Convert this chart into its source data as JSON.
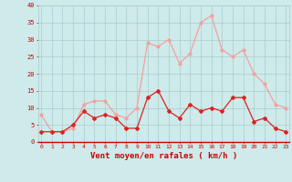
{
  "hours": [
    0,
    1,
    2,
    3,
    4,
    5,
    6,
    7,
    8,
    9,
    10,
    11,
    12,
    13,
    14,
    15,
    16,
    17,
    18,
    19,
    20,
    21,
    22,
    23
  ],
  "wind_avg": [
    3,
    3,
    3,
    5,
    9,
    7,
    8,
    7,
    4,
    4,
    13,
    15,
    9,
    7,
    11,
    9,
    10,
    9,
    13,
    13,
    6,
    7,
    4,
    3
  ],
  "wind_gust": [
    8,
    3,
    3,
    4,
    11,
    12,
    12,
    8,
    7,
    10,
    29,
    28,
    30,
    23,
    26,
    35,
    37,
    27,
    25,
    27,
    20,
    17,
    11,
    10
  ],
  "color_avg": "#dd2222",
  "color_gust": "#f4a0a0",
  "bg_color": "#ceeaea",
  "grid_color": "#aacccc",
  "xlabel": "Vent moyen/en rafales ( km/h )",
  "xlabel_color": "#cc0000",
  "tick_color": "#cc0000",
  "ylim": [
    0,
    40
  ],
  "yticks": [
    0,
    5,
    10,
    15,
    20,
    25,
    30,
    35,
    40
  ],
  "xlim_min": -0.3,
  "xlim_max": 23.3
}
